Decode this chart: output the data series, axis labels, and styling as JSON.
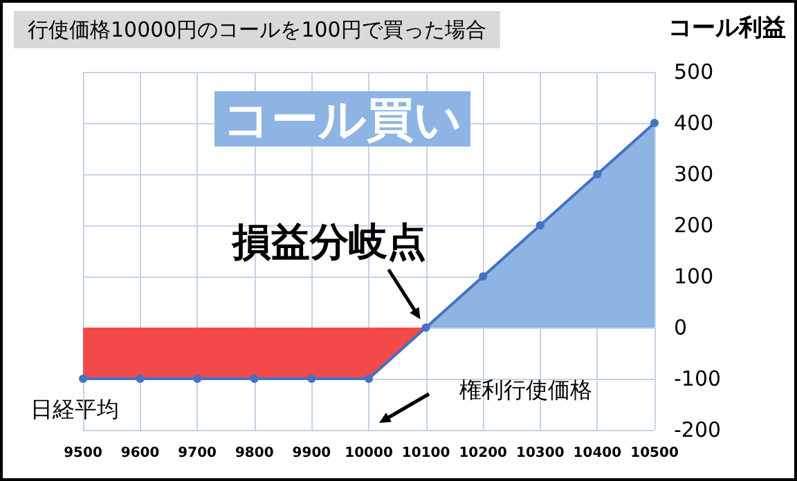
{
  "chart_data": {
    "type": "area",
    "title": "行使価格10000円のコールを100円で買った場合",
    "xlabel": "日経平均",
    "ylabel": "コール利益",
    "annotations": [
      "コール買い",
      {
        "text": "損益分岐点",
        "x": 10100,
        "y": 0
      },
      "権利行使価格"
    ],
    "x": [
      9500,
      9600,
      9700,
      9800,
      9900,
      10000,
      10100,
      10200,
      10300,
      10400,
      10500
    ],
    "series": [
      {
        "color": "#8eb4e3",
        "values": [
          null,
          null,
          null,
          null,
          null,
          null,
          0,
          100,
          200,
          300,
          400
        ]
      },
      {
        "color": "#f24a4a",
        "values": [
          -100,
          -100,
          -100,
          -100,
          -100,
          -100,
          0,
          null,
          null,
          null,
          null
        ]
      },
      {
        "type": "line",
        "color": "#4472c4",
        "marker": "circle",
        "values": [
          -100,
          -100,
          -100,
          -100,
          -100,
          -100,
          0,
          100,
          200,
          300,
          400
        ]
      }
    ],
    "xlim": [
      9500,
      10500
    ],
    "xticks": [
      9500,
      9600,
      9700,
      9800,
      9900,
      10000,
      10100,
      10200,
      10300,
      10400,
      10500
    ],
    "ylim": [
      -200,
      500
    ],
    "yticks": [
      -200,
      -100,
      0,
      100,
      200,
      300,
      400,
      500
    ],
    "grid": true
  }
}
